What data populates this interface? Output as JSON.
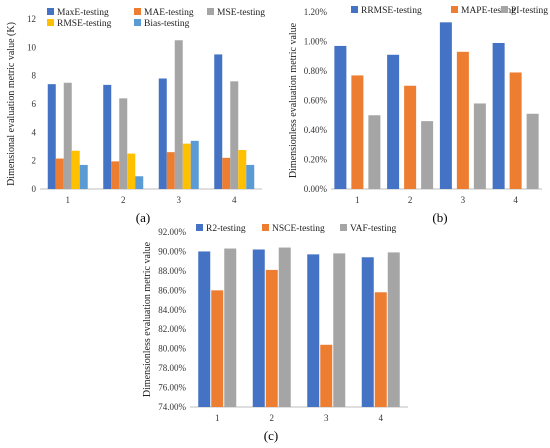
{
  "colors": {
    "blue": "#4472C4",
    "orange": "#ED7D31",
    "gray": "#A5A5A5",
    "yellow": "#FFC000",
    "lightblue": "#5B9BD5"
  },
  "chart_data": [
    {
      "type": "bar",
      "panel_label": "(a)",
      "ylabel": "Dimensional evaluation metric value (K)",
      "categories": [
        "1",
        "2",
        "3",
        "4"
      ],
      "ylim": [
        0,
        12
      ],
      "yticks": [
        "0",
        "2",
        "4",
        "6",
        "8",
        "10",
        "12"
      ],
      "legend_placement": "top",
      "series": [
        {
          "name": "MaxE-testing",
          "color": "#4472C4",
          "values": [
            7.4,
            7.35,
            7.8,
            9.5
          ]
        },
        {
          "name": "MAE-testing",
          "color": "#ED7D31",
          "values": [
            2.15,
            1.95,
            2.6,
            2.2
          ]
        },
        {
          "name": "MSE-testing",
          "color": "#A5A5A5",
          "values": [
            7.5,
            6.4,
            10.5,
            7.6
          ]
        },
        {
          "name": "RMSE-testing",
          "color": "#FFC000",
          "values": [
            2.7,
            2.5,
            3.2,
            2.75
          ]
        },
        {
          "name": "Bias-testing",
          "color": "#5B9BD5",
          "values": [
            1.7,
            0.9,
            3.4,
            1.7
          ]
        }
      ]
    },
    {
      "type": "bar",
      "panel_label": "(b)",
      "ylabel": "Dimensionless evaluation metric value",
      "categories": [
        "1",
        "2",
        "3",
        "4"
      ],
      "ylim": [
        0,
        1.2
      ],
      "yticks": [
        "0.00%",
        "0.20%",
        "0.40%",
        "0.60%",
        "0.80%",
        "1.00%",
        "1.20%"
      ],
      "legend_placement": "top",
      "series": [
        {
          "name": "RRMSE-testing",
          "color": "#4472C4",
          "values": [
            0.97,
            0.91,
            1.13,
            0.99
          ]
        },
        {
          "name": "MAPE-testing",
          "color": "#ED7D31",
          "values": [
            0.77,
            0.7,
            0.93,
            0.79
          ]
        },
        {
          "name": "PI-testing",
          "color": "#A5A5A5",
          "values": [
            0.5,
            0.46,
            0.58,
            0.51
          ]
        }
      ]
    },
    {
      "type": "bar",
      "panel_label": "(c)",
      "ylabel": "Dimensionless evaluation metric value",
      "categories": [
        "1",
        "2",
        "3",
        "4"
      ],
      "ylim": [
        74,
        92
      ],
      "yticks": [
        "74.00%",
        "76.00%",
        "78.00%",
        "80.00%",
        "82.00%",
        "84.00%",
        "86.00%",
        "88.00%",
        "90.00%",
        "92.00%"
      ],
      "legend_placement": "top",
      "series": [
        {
          "name": "R2-testing",
          "color": "#4472C4",
          "values": [
            90.0,
            90.2,
            89.7,
            89.4
          ]
        },
        {
          "name": "NSCE-testing",
          "color": "#ED7D31",
          "values": [
            86.0,
            88.1,
            80.4,
            85.8
          ]
        },
        {
          "name": "VAF-testing",
          "color": "#A5A5A5",
          "values": [
            90.3,
            90.4,
            89.8,
            89.9
          ]
        }
      ]
    }
  ]
}
